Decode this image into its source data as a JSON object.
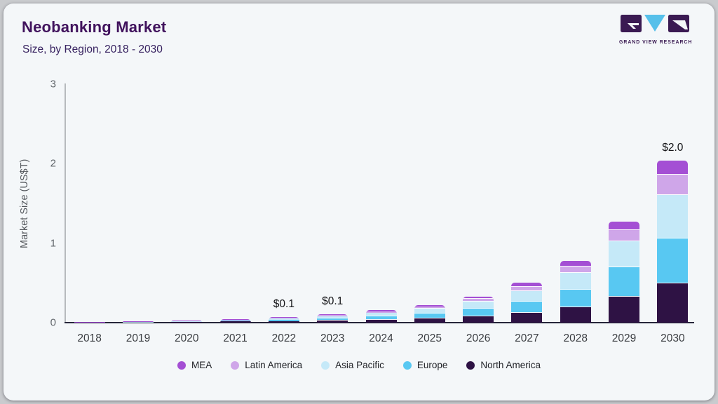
{
  "header": {
    "title": "Neobanking Market",
    "subtitle": "Size, by Region, 2018 - 2030",
    "logo_text": "GRAND VIEW RESEARCH"
  },
  "colors": {
    "frame_border": "#c9cbce",
    "card_bg": "#f4f7f9",
    "title": "#41135d",
    "logo_dark": "#3a1a52",
    "logo_blue": "#56c0ea",
    "axis_line": "#26263a"
  },
  "chart_data": {
    "type": "bar",
    "stacked": true,
    "title": "Neobanking Market",
    "subtitle": "Size, by Region, 2018 - 2030",
    "xlabel": "",
    "ylabel": "Market Size (US$T)",
    "ylim": [
      0,
      3
    ],
    "ytick_labels": [
      "0",
      "1",
      "2",
      "3"
    ],
    "grid": false,
    "legend_position": "bottom",
    "categories": [
      "2018",
      "2019",
      "2020",
      "2021",
      "2022",
      "2023",
      "2024",
      "2025",
      "2026",
      "2027",
      "2028",
      "2029",
      "2030"
    ],
    "series": [
      {
        "name": "North America",
        "color": "#2e1244",
        "values": [
          0.004,
          0.006,
          0.009,
          0.014,
          0.02,
          0.028,
          0.042,
          0.06,
          0.085,
          0.125,
          0.2,
          0.33,
          0.5
        ]
      },
      {
        "name": "Europe",
        "color": "#58c8f2",
        "values": [
          0.003,
          0.004,
          0.007,
          0.012,
          0.019,
          0.029,
          0.043,
          0.063,
          0.093,
          0.14,
          0.22,
          0.37,
          0.56
        ]
      },
      {
        "name": "Asia Pacific",
        "color": "#c5e9f8",
        "values": [
          0.002,
          0.003,
          0.005,
          0.009,
          0.016,
          0.026,
          0.04,
          0.058,
          0.088,
          0.135,
          0.21,
          0.33,
          0.55
        ]
      },
      {
        "name": "Latin America",
        "color": "#cfa6e9",
        "values": [
          0.001,
          0.001,
          0.002,
          0.004,
          0.007,
          0.011,
          0.016,
          0.024,
          0.036,
          0.053,
          0.082,
          0.135,
          0.26
        ]
      },
      {
        "name": "MEA",
        "color": "#a44fd4",
        "values": [
          0.001,
          0.001,
          0.002,
          0.003,
          0.005,
          0.009,
          0.014,
          0.02,
          0.028,
          0.047,
          0.068,
          0.105,
          0.17
        ]
      }
    ],
    "totals_labeled": {
      "2022": "$0.1",
      "2023": "$0.1",
      "2030": "$2.0"
    },
    "annotations": [
      "",
      "",
      "",
      "",
      "$0.1",
      "$0.1",
      "",
      "",
      "",
      "",
      "",
      "",
      "$2.0"
    ]
  }
}
